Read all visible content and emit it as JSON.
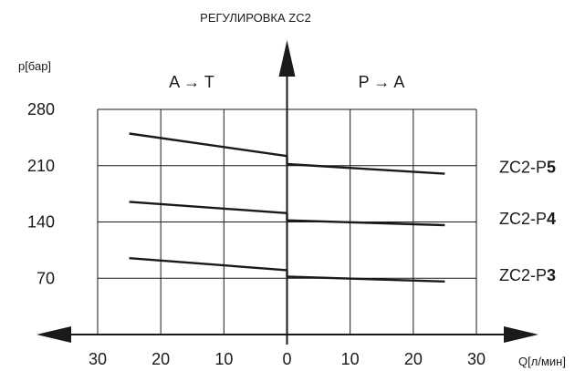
{
  "chart_data": {
    "type": "line",
    "title": "РЕГУЛИРОВКА ZC2",
    "ylabel": "p[бар]",
    "xlabel": "Q[л/мин]",
    "left_region_label": "A → T",
    "right_region_label": "P → A",
    "x_tick_labels": [
      "30",
      "20",
      "10",
      "0",
      "10",
      "20",
      "30"
    ],
    "x_ticks": [
      -30,
      -20,
      -10,
      0,
      10,
      20,
      30
    ],
    "xlim": [
      -30,
      30
    ],
    "y_ticks": [
      70,
      140,
      210,
      280
    ],
    "ylim": [
      0,
      280
    ],
    "grid": true,
    "series": [
      {
        "name": "ZC2-P5",
        "name_prefix": "ZC2-P",
        "name_digit": "5",
        "left": [
          [
            -25,
            250
          ],
          [
            0,
            222
          ]
        ],
        "right": [
          [
            0,
            212
          ],
          [
            25,
            200
          ]
        ]
      },
      {
        "name": "ZC2-P4",
        "name_prefix": "ZC2-P",
        "name_digit": "4",
        "left": [
          [
            -25,
            165
          ],
          [
            0,
            151
          ]
        ],
        "right": [
          [
            0,
            142
          ],
          [
            25,
            136
          ]
        ]
      },
      {
        "name": "ZC2-P3",
        "name_prefix": "ZC2-P",
        "name_digit": "3",
        "left": [
          [
            -25,
            95
          ],
          [
            0,
            80
          ]
        ],
        "right": [
          [
            0,
            72
          ],
          [
            25,
            66
          ]
        ]
      }
    ]
  }
}
